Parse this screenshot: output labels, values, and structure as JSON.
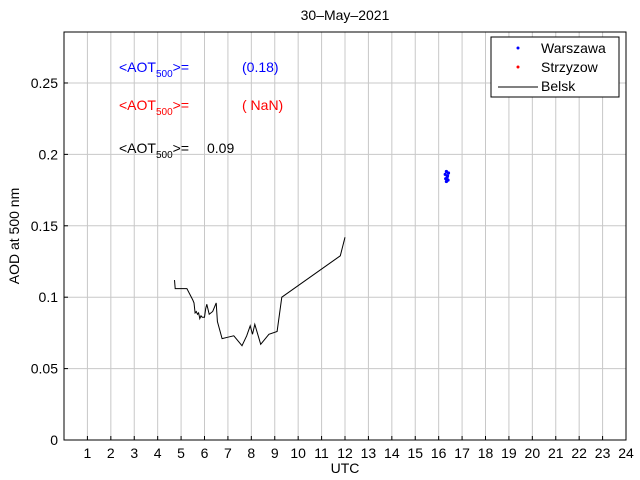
{
  "chart_data": {
    "type": "line",
    "title": "30–May–2021",
    "xlabel": "UTC",
    "ylabel": "AOD at 500 nm",
    "xlim": [
      0,
      24
    ],
    "ylim": [
      0,
      0.2857
    ],
    "x_ticks": [
      "1",
      "2",
      "3",
      "4",
      "5",
      "6",
      "7",
      "8",
      "9",
      "10",
      "11",
      "12",
      "13",
      "14",
      "15",
      "16",
      "17",
      "18",
      "19",
      "20",
      "21",
      "22",
      "23",
      "24"
    ],
    "y_ticks": [
      "0",
      "0.05",
      "0.1",
      "0.15",
      "0.2",
      "0.25"
    ],
    "y_tick_values": [
      0,
      0.05,
      0.1,
      0.15,
      0.2,
      0.25
    ],
    "grid": true,
    "legend_position": "top-right",
    "legend": [
      {
        "name": "Warszawa",
        "color": "#0000ff",
        "style": "dots"
      },
      {
        "name": "Strzyzow",
        "color": "#ff0000",
        "style": "dots"
      },
      {
        "name": "Belsk",
        "color": "#000000",
        "style": "line"
      }
    ],
    "annotations": [
      {
        "prefix": "<AOT",
        "sub": "500",
        "suffix": ">=",
        "value": "(0.18)",
        "color": "#0000ff"
      },
      {
        "prefix": "<AOT",
        "sub": "500",
        "suffix": ">=",
        "value": "( NaN)",
        "color": "#ff0000"
      },
      {
        "prefix": "<AOT",
        "sub": "500",
        "suffix": ">=",
        "value": "0.09",
        "color": "#000000"
      }
    ],
    "series": [
      {
        "name": "Warszawa",
        "type": "scatter",
        "color": "#0000ff",
        "x": [
          16.28,
          16.33,
          16.38,
          16.3,
          16.36,
          16.42,
          16.33,
          16.4
        ],
        "y": [
          0.186,
          0.188,
          0.185,
          0.183,
          0.184,
          0.187,
          0.181,
          0.182
        ]
      },
      {
        "name": "Strzyzow",
        "type": "scatter",
        "color": "#ff0000",
        "x": [],
        "y": []
      },
      {
        "name": "Belsk",
        "type": "line",
        "color": "#000000",
        "x": [
          4.72,
          4.75,
          5.25,
          5.5,
          5.55,
          5.6,
          5.65,
          5.7,
          5.75,
          5.8,
          5.85,
          5.9,
          6.0,
          6.05,
          6.1,
          6.2,
          6.35,
          6.5,
          6.55,
          6.75,
          7.0,
          7.25,
          7.6,
          7.8,
          7.95,
          8.05,
          8.15,
          8.4,
          8.75,
          9.1,
          9.3,
          11.8,
          12.0
        ],
        "y": [
          0.112,
          0.106,
          0.106,
          0.098,
          0.096,
          0.089,
          0.09,
          0.088,
          0.089,
          0.085,
          0.087,
          0.086,
          0.086,
          0.092,
          0.095,
          0.088,
          0.09,
          0.096,
          0.083,
          0.071,
          0.072,
          0.073,
          0.066,
          0.073,
          0.08,
          0.074,
          0.081,
          0.067,
          0.074,
          0.076,
          0.1,
          0.129,
          0.142
        ]
      }
    ]
  }
}
